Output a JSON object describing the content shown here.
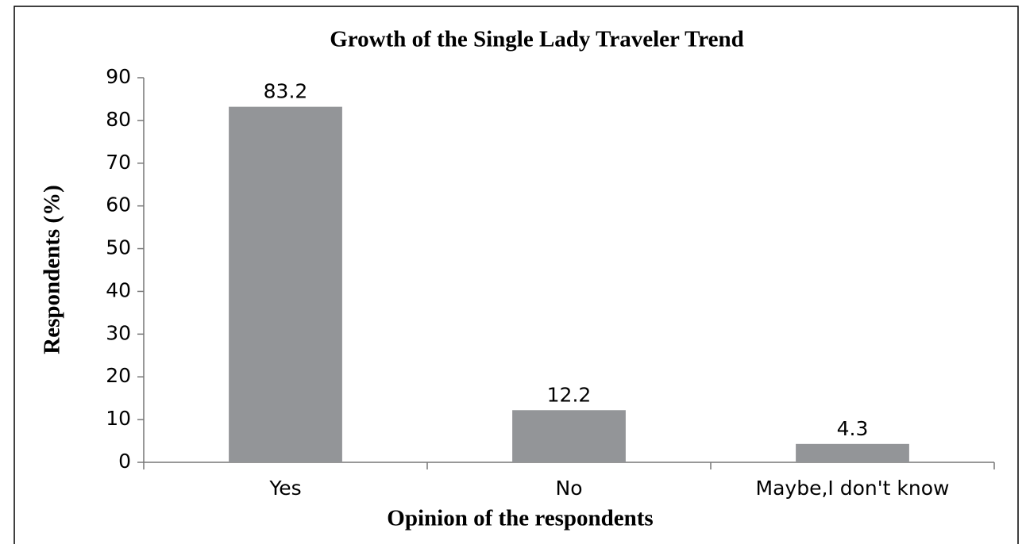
{
  "chart_data": {
    "type": "bar",
    "title": "Growth of the Single Lady Traveler Trend",
    "x_label": "Opinion of the respondents",
    "y_label": "Respondents (%)",
    "categories": [
      "Yes",
      "No",
      "Maybe,I don't know"
    ],
    "values": [
      83.2,
      12.2,
      4.3
    ],
    "color": "#939598",
    "ylim": [
      0,
      90
    ],
    "yticks": [
      0,
      10,
      20,
      30,
      40,
      50,
      60,
      70,
      80,
      90
    ],
    "grid": false
  }
}
